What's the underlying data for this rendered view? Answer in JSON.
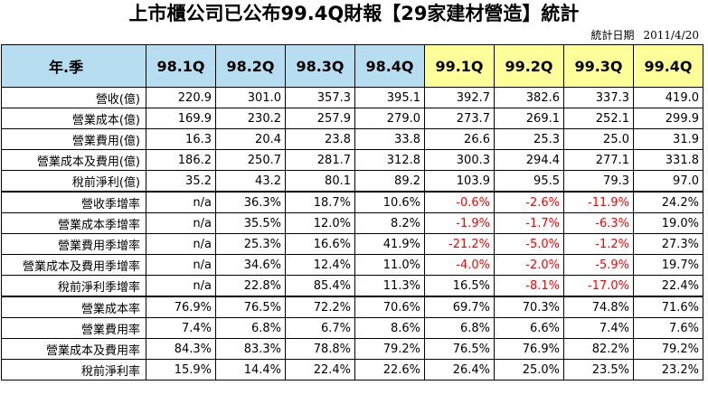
{
  "title": "上市櫃公司已公布99.4Q財報【29家建材營造】統計",
  "stat_date_label": "統計日期",
  "stat_date": "2011/4/20",
  "header": {
    "label": "年.季",
    "periods": [
      "98.1Q",
      "98.2Q",
      "98.3Q",
      "98.4Q",
      "99.1Q",
      "99.2Q",
      "99.3Q",
      "99.4Q"
    ]
  },
  "rows": [
    {
      "label": "營收(億)",
      "values": [
        "220.9",
        "301.0",
        "357.3",
        "395.1",
        "392.7",
        "382.6",
        "337.3",
        "419.0"
      ]
    },
    {
      "label": "營業成本(億)",
      "values": [
        "169.9",
        "230.2",
        "257.9",
        "279.0",
        "273.7",
        "269.1",
        "252.1",
        "299.9"
      ]
    },
    {
      "label": "營業費用(億)",
      "values": [
        "16.3",
        "20.4",
        "23.8",
        "33.8",
        "26.6",
        "25.3",
        "25.0",
        "31.9"
      ]
    },
    {
      "label": "營業成本及費用(億)",
      "values": [
        "186.2",
        "250.7",
        "281.7",
        "312.8",
        "300.3",
        "294.4",
        "277.1",
        "331.8"
      ]
    },
    {
      "label": "稅前淨利(億)",
      "values": [
        "35.2",
        "43.2",
        "80.1",
        "89.2",
        "103.9",
        "95.5",
        "79.3",
        "97.0"
      ]
    },
    {
      "label": "營收季增率",
      "values": [
        "n/a",
        "36.3%",
        "18.7%",
        "10.6%",
        "-0.6%",
        "-2.6%",
        "-11.9%",
        "24.2%"
      ]
    },
    {
      "label": "營業成本季增率",
      "values": [
        "n/a",
        "35.5%",
        "12.0%",
        "8.2%",
        "-1.9%",
        "-1.7%",
        "-6.3%",
        "19.0%"
      ]
    },
    {
      "label": "營業費用季增率",
      "values": [
        "n/a",
        "25.3%",
        "16.6%",
        "41.9%",
        "-21.2%",
        "-5.0%",
        "-1.2%",
        "27.3%"
      ]
    },
    {
      "label": "營業成本及費用季增率",
      "values": [
        "n/a",
        "34.6%",
        "12.4%",
        "11.0%",
        "-4.0%",
        "-2.0%",
        "-5.9%",
        "19.7%"
      ]
    },
    {
      "label": "稅前淨利季增率",
      "values": [
        "n/a",
        "22.8%",
        "85.4%",
        "11.3%",
        "16.5%",
        "-8.1%",
        "-17.0%",
        "22.4%"
      ]
    },
    {
      "label": "營業成本率",
      "values": [
        "76.9%",
        "76.5%",
        "72.2%",
        "70.6%",
        "69.7%",
        "70.3%",
        "74.8%",
        "71.6%"
      ]
    },
    {
      "label": "營業費用率",
      "values": [
        "7.4%",
        "6.8%",
        "6.7%",
        "8.6%",
        "6.8%",
        "6.6%",
        "7.4%",
        "7.6%"
      ]
    },
    {
      "label": "營業成本及費用率",
      "values": [
        "84.3%",
        "83.3%",
        "78.8%",
        "79.2%",
        "76.5%",
        "76.9%",
        "82.2%",
        "79.2%"
      ]
    },
    {
      "label": "稅前淨利率",
      "values": [
        "15.9%",
        "14.4%",
        "22.4%",
        "22.6%",
        "26.4%",
        "25.0%",
        "23.5%",
        "23.2%"
      ]
    }
  ],
  "colors": {
    "header_blue": "#b7ddf0",
    "header_yellow": "#ffff99",
    "negative": "#ff0000"
  }
}
